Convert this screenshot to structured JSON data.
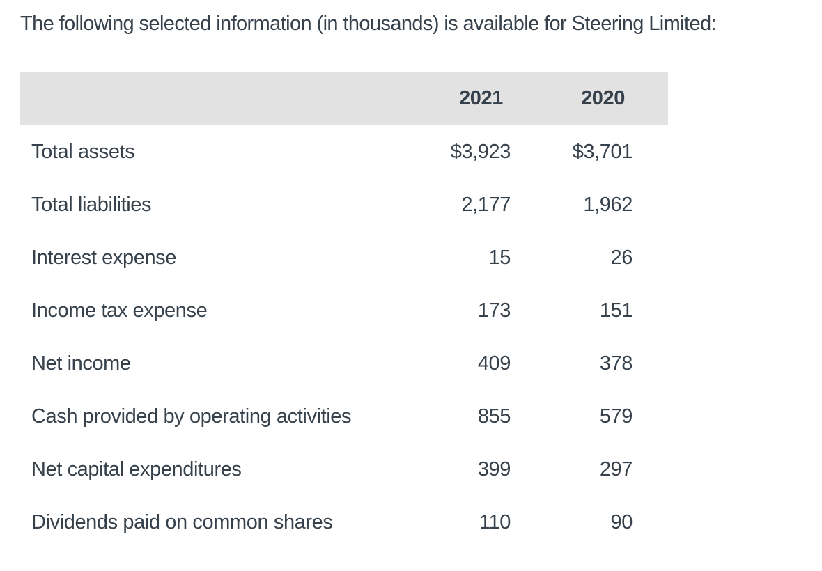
{
  "title": "The following selected information (in thousands) is available for Steering Limited:",
  "table": {
    "header": {
      "col_2021": "2021",
      "col_2020": "2020"
    },
    "rows": [
      {
        "label": "Total assets",
        "v2021": "$3,923",
        "v2020": "$3,701"
      },
      {
        "label": "Total liabilities",
        "v2021": "2,177",
        "v2020": "1,962"
      },
      {
        "label": "Interest expense",
        "v2021": "15",
        "v2020": "26"
      },
      {
        "label": "Income tax expense",
        "v2021": "173",
        "v2020": "151"
      },
      {
        "label": "Net income",
        "v2021": "409",
        "v2020": "378"
      },
      {
        "label": "Cash provided by operating activities",
        "v2021": "855",
        "v2020": "579"
      },
      {
        "label": "Net capital expenditures",
        "v2021": "399",
        "v2020": "297"
      },
      {
        "label": "Dividends paid on common shares",
        "v2021": "110",
        "v2020": "90"
      }
    ]
  },
  "colors": {
    "text": "#36414c",
    "header_background": "#e2e2e3",
    "page_background": "#ffffff"
  }
}
